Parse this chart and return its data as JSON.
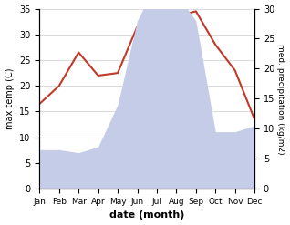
{
  "months": [
    "Jan",
    "Feb",
    "Mar",
    "Apr",
    "May",
    "Jun",
    "Jul",
    "Aug",
    "Sep",
    "Oct",
    "Nov",
    "Dec"
  ],
  "temp": [
    16.5,
    20.0,
    26.5,
    22.0,
    22.5,
    31.5,
    34.0,
    33.5,
    34.5,
    28.0,
    23.0,
    13.5
  ],
  "precip": [
    6.5,
    6.5,
    6.0,
    7.0,
    14.0,
    28.0,
    34.5,
    32.5,
    28.0,
    9.5,
    9.5,
    10.5
  ],
  "temp_color": "#c0392b",
  "precip_fill_color": "#c5cce8",
  "xlabel": "date (month)",
  "ylabel_left": "max temp (C)",
  "ylabel_right": "med. precipitation (kg/m2)",
  "ylim_left": [
    0,
    35
  ],
  "ylim_right": [
    0,
    30
  ],
  "yticks_left": [
    0,
    5,
    10,
    15,
    20,
    25,
    30,
    35
  ],
  "yticks_right": [
    0,
    5,
    10,
    15,
    20,
    25,
    30
  ],
  "grid_color": "#cccccc"
}
